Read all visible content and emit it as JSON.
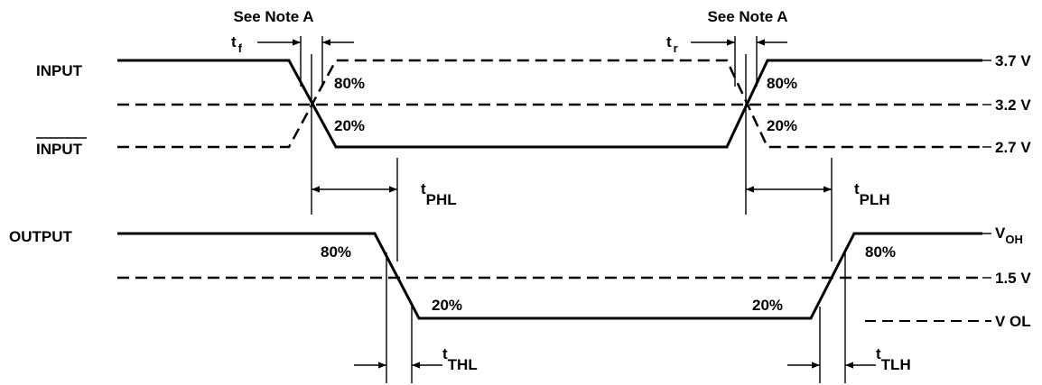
{
  "notes": {
    "left": "See Note A",
    "right": "See Note A"
  },
  "signals": {
    "input": "INPUT",
    "input_bar": "INPUT",
    "output": "OUTPUT"
  },
  "levels": {
    "v37": "3.7 V",
    "v32": "3.2 V",
    "v27": "2.7 V",
    "voh_main": "V",
    "voh_sub": "OH",
    "v15": "1.5 V",
    "vol": "V OL"
  },
  "percents": {
    "in_f_80": "80%",
    "in_f_20": "20%",
    "in_r_80": "80%",
    "in_r_20": "20%",
    "out_f_80": "80%",
    "out_f_20": "20%",
    "out_r_20": "20%",
    "out_r_80": "80%"
  },
  "timing": {
    "tf_main": "t",
    "tf_sub": "f",
    "tr_main": "t",
    "tr_sub": "r",
    "tphl_main": "t",
    "tphl_sub": "PHL",
    "tplh_main": "t",
    "tplh_sub": "PLH",
    "tthl_main": "t",
    "tthl_sub": "THL",
    "ttlh_main": "t",
    "ttlh_sub": "TLH"
  }
}
